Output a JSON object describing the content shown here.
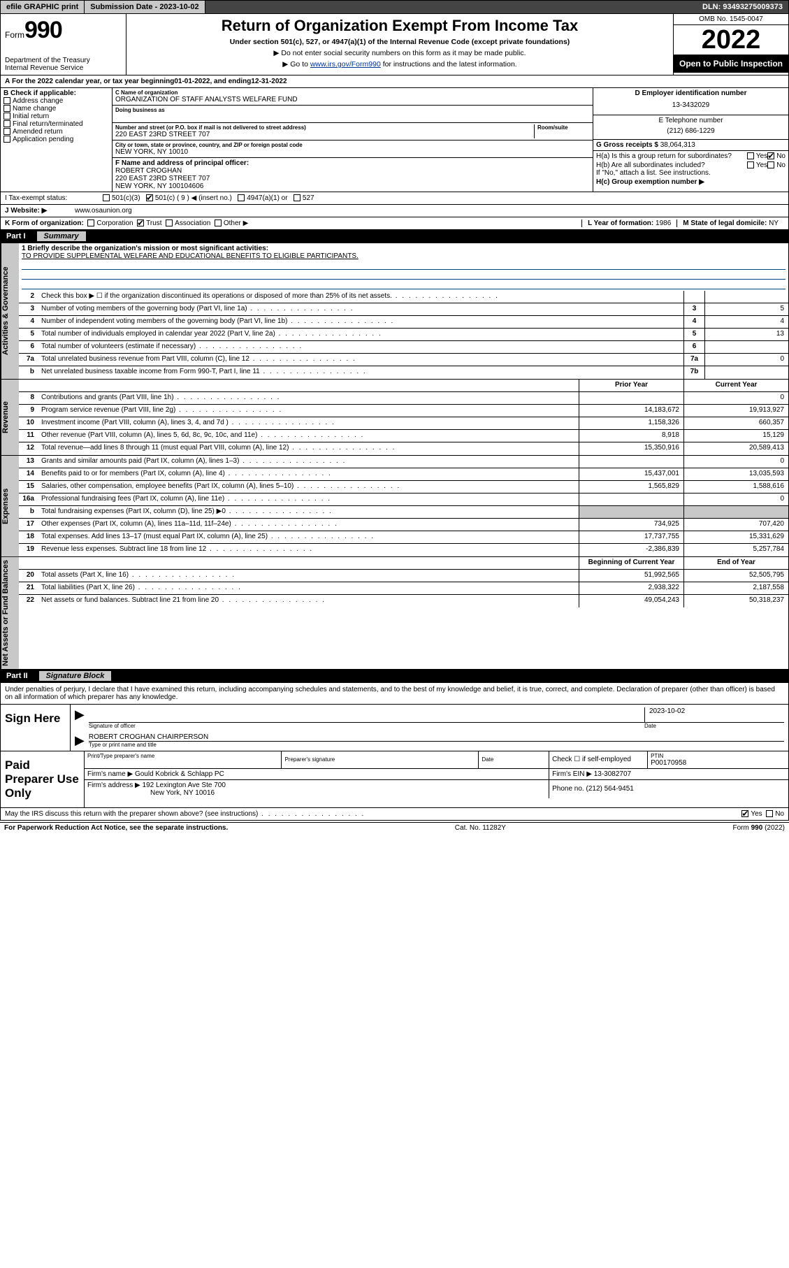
{
  "topbar": {
    "efile": "efile GRAPHIC print",
    "submit_label": "Submission Date - 2023-10-02",
    "dln": "DLN: 93493275009373"
  },
  "header": {
    "form_small": "Form",
    "form_big": "990",
    "title": "Return of Organization Exempt From Income Tax",
    "subtitle": "Under section 501(c), 527, or 4947(a)(1) of the Internal Revenue Code (except private foundations)",
    "note1": "▶ Do not enter social security numbers on this form as it may be made public.",
    "note2_a": "▶ Go to ",
    "note2_link": "www.irs.gov/Form990",
    "note2_b": " for instructions and the latest information.",
    "dept": "Department of the Treasury\nInternal Revenue Service",
    "omb": "OMB No. 1545-0047",
    "year": "2022",
    "inspect": "Open to Public Inspection"
  },
  "periodA": {
    "text_a": "For the 2022 calendar year, or tax year beginning ",
    "begin": "01-01-2022",
    "text_b": " , and ending ",
    "end": "12-31-2022"
  },
  "boxB": {
    "label": "B Check if applicable:",
    "items": [
      "Address change",
      "Name change",
      "Initial return",
      "Final return/terminated",
      "Amended return",
      "Application pending"
    ]
  },
  "boxC": {
    "name_label": "C Name of organization",
    "name": "ORGANIZATION OF STAFF ANALYSTS WELFARE FUND",
    "dba_label": "Doing business as",
    "addr_label": "Number and street (or P.O. box if mail is not delivered to street address)",
    "room_label": "Room/suite",
    "addr": "220 EAST 23RD STREET 707",
    "city_label": "City or town, state or province, country, and ZIP or foreign postal code",
    "city": "NEW YORK, NY  10010"
  },
  "boxD": {
    "label": "D Employer identification number",
    "value": "13-3432029"
  },
  "boxE": {
    "label": "E Telephone number",
    "value": "(212) 686-1229"
  },
  "boxF": {
    "label": "F Name and address of principal officer:",
    "name": "ROBERT CROGHAN",
    "addr1": "220 EAST 23RD STREET 707",
    "addr2": "NEW YORK, NY  100104606"
  },
  "boxG": {
    "label": "G Gross receipts $",
    "value": "38,064,313"
  },
  "boxH": {
    "a": "H(a)  Is this a group return for subordinates?",
    "b": "H(b)  Are all subordinates included?",
    "note": "If \"No,\" attach a list. See instructions.",
    "c": "H(c)  Group exemption number ▶"
  },
  "lineI": {
    "label": "I   Tax-exempt status:",
    "opts": [
      "501(c)(3)",
      "501(c) ( 9 ) ◀ (insert no.)",
      "4947(a)(1) or",
      "527"
    ]
  },
  "lineJ": {
    "label": "J   Website: ▶",
    "value": "www.osaunion.org"
  },
  "lineK": {
    "label": "K Form of organization:",
    "opts": [
      "Corporation",
      "Trust",
      "Association",
      "Other ▶"
    ]
  },
  "lineL": {
    "label": "L Year of formation:",
    "value": "1986"
  },
  "lineM": {
    "label": "M State of legal domicile:",
    "value": "NY"
  },
  "partI": {
    "num": "Part I",
    "title": "Summary"
  },
  "mission": {
    "q": "1  Briefly describe the organization's mission or most significant activities:",
    "text": "TO PROVIDE SUPPLEMENTAL WELFARE AND EDUCATIONAL BENEFITS TO ELIGIBLE PARTICIPANTS."
  },
  "gov_rows": [
    {
      "n": "2",
      "d": "Check this box ▶ ☐  if the organization discontinued its operations or disposed of more than 25% of its net assets.",
      "box": "",
      "v": ""
    },
    {
      "n": "3",
      "d": "Number of voting members of the governing body (Part VI, line 1a)",
      "box": "3",
      "v": "5"
    },
    {
      "n": "4",
      "d": "Number of independent voting members of the governing body (Part VI, line 1b)",
      "box": "4",
      "v": "4"
    },
    {
      "n": "5",
      "d": "Total number of individuals employed in calendar year 2022 (Part V, line 2a)",
      "box": "5",
      "v": "13"
    },
    {
      "n": "6",
      "d": "Total number of volunteers (estimate if necessary)",
      "box": "6",
      "v": ""
    },
    {
      "n": "7a",
      "d": "Total unrelated business revenue from Part VIII, column (C), line 12",
      "box": "7a",
      "v": "0"
    },
    {
      "n": "b",
      "d": "Net unrelated business taxable income from Form 990-T, Part I, line 11",
      "box": "7b",
      "v": ""
    }
  ],
  "colhdr": {
    "prior": "Prior Year",
    "current": "Current Year"
  },
  "rev_rows": [
    {
      "n": "8",
      "d": "Contributions and grants (Part VIII, line 1h)",
      "p": "",
      "c": "0"
    },
    {
      "n": "9",
      "d": "Program service revenue (Part VIII, line 2g)",
      "p": "14,183,672",
      "c": "19,913,927"
    },
    {
      "n": "10",
      "d": "Investment income (Part VIII, column (A), lines 3, 4, and 7d )",
      "p": "1,158,326",
      "c": "660,357"
    },
    {
      "n": "11",
      "d": "Other revenue (Part VIII, column (A), lines 5, 6d, 8c, 9c, 10c, and 11e)",
      "p": "8,918",
      "c": "15,129"
    },
    {
      "n": "12",
      "d": "Total revenue—add lines 8 through 11 (must equal Part VIII, column (A), line 12)",
      "p": "15,350,916",
      "c": "20,589,413"
    }
  ],
  "exp_rows": [
    {
      "n": "13",
      "d": "Grants and similar amounts paid (Part IX, column (A), lines 1–3)",
      "p": "",
      "c": "0"
    },
    {
      "n": "14",
      "d": "Benefits paid to or for members (Part IX, column (A), line 4)",
      "p": "15,437,001",
      "c": "13,035,593"
    },
    {
      "n": "15",
      "d": "Salaries, other compensation, employee benefits (Part IX, column (A), lines 5–10)",
      "p": "1,565,829",
      "c": "1,588,616"
    },
    {
      "n": "16a",
      "d": "Professional fundraising fees (Part IX, column (A), line 11e)",
      "p": "",
      "c": "0"
    },
    {
      "n": "b",
      "d": "Total fundraising expenses (Part IX, column (D), line 25) ▶0",
      "p": "shade",
      "c": "shade"
    },
    {
      "n": "17",
      "d": "Other expenses (Part IX, column (A), lines 11a–11d, 11f–24e)",
      "p": "734,925",
      "c": "707,420"
    },
    {
      "n": "18",
      "d": "Total expenses. Add lines 13–17 (must equal Part IX, column (A), line 25)",
      "p": "17,737,755",
      "c": "15,331,629"
    },
    {
      "n": "19",
      "d": "Revenue less expenses. Subtract line 18 from line 12",
      "p": "-2,386,839",
      "c": "5,257,784"
    }
  ],
  "na_hdr": {
    "beg": "Beginning of Current Year",
    "end": "End of Year"
  },
  "na_rows": [
    {
      "n": "20",
      "d": "Total assets (Part X, line 16)",
      "p": "51,992,565",
      "c": "52,505,795"
    },
    {
      "n": "21",
      "d": "Total liabilities (Part X, line 26)",
      "p": "2,938,322",
      "c": "2,187,558"
    },
    {
      "n": "22",
      "d": "Net assets or fund balances. Subtract line 21 from line 20",
      "p": "49,054,243",
      "c": "50,318,237"
    }
  ],
  "partII": {
    "num": "Part II",
    "title": "Signature Block"
  },
  "penalties": "Under penalties of perjury, I declare that I have examined this return, including accompanying schedules and statements, and to the best of my knowledge and belief, it is true, correct, and complete. Declaration of preparer (other than officer) is based on all information of which preparer has any knowledge.",
  "sign": {
    "here": "Sign Here",
    "sig_officer": "Signature of officer",
    "date_label": "Date",
    "date": "2023-10-02",
    "name": "ROBERT CROGHAN  CHAIRPERSON",
    "name_label": "Type or print name and title"
  },
  "prep": {
    "label": "Paid Preparer Use Only",
    "h1": "Print/Type preparer's name",
    "h2": "Preparer's signature",
    "h3": "Date",
    "h4a": "Check ☐ if self-employed",
    "h4b": "PTIN",
    "ptin": "P00170958",
    "firm_label": "Firm's name    ▶",
    "firm": "Gould Kobrick & Schlapp PC",
    "ein_label": "Firm's EIN ▶",
    "ein": "13-3082707",
    "addr_label": "Firm's address ▶",
    "addr1": "192 Lexington Ave Ste 700",
    "addr2": "New York, NY  10016",
    "phone_label": "Phone no.",
    "phone": "(212) 564-9451"
  },
  "discuss": "May the IRS discuss this return with the preparer shown above? (see instructions)",
  "footer": {
    "left": "For Paperwork Reduction Act Notice, see the separate instructions.",
    "mid": "Cat. No. 11282Y",
    "right": "Form 990 (2022)"
  },
  "vtabs": {
    "gov": "Activities & Governance",
    "rev": "Revenue",
    "exp": "Expenses",
    "na": "Net Assets or Fund Balances"
  }
}
